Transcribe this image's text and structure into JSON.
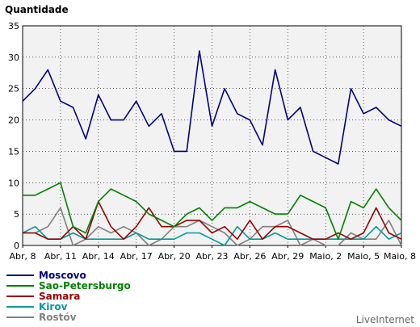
{
  "chart_data": {
    "type": "line",
    "ylabel": "Quantidade",
    "ylim": [
      0,
      35
    ],
    "yticks": [
      0,
      5,
      10,
      15,
      20,
      25,
      30,
      35
    ],
    "x_tick_labels": [
      "Abr, 8",
      "Abr, 11",
      "Abr, 14",
      "Abr, 17",
      "Abr, 20",
      "Abr, 23",
      "Abr, 26",
      "Abr, 29",
      "Maio, 2",
      "Maio, 5",
      "Maio, 8"
    ],
    "x": [
      "Abr, 8",
      "Abr, 9",
      "Abr, 10",
      "Abr, 11",
      "Abr, 12",
      "Abr, 13",
      "Abr, 14",
      "Abr, 15",
      "Abr, 16",
      "Abr, 17",
      "Abr, 18",
      "Abr, 19",
      "Abr, 20",
      "Abr, 21",
      "Abr, 22",
      "Abr, 23",
      "Abr, 24",
      "Abr, 25",
      "Abr, 26",
      "Abr, 27",
      "Abr, 28",
      "Abr, 29",
      "Abr, 30",
      "Maio, 1",
      "Maio, 2",
      "Maio, 3",
      "Maio, 4",
      "Maio, 5",
      "Maio, 6",
      "Maio, 7",
      "Maio, 8"
    ],
    "grid": true,
    "plot_background": "#f2f2f2",
    "series": [
      {
        "name": "Moscovo",
        "color": "#000080",
        "values": [
          23,
          25,
          28,
          23,
          22,
          17,
          24,
          20,
          20,
          23,
          19,
          21,
          15,
          15,
          31,
          19,
          25,
          21,
          20,
          16,
          28,
          20,
          22,
          15,
          14,
          13,
          25,
          21,
          22,
          20,
          19
        ]
      },
      {
        "name": "Sao-Petersburgo",
        "color": "#008000",
        "values": [
          8,
          8,
          9,
          10,
          3,
          2,
          7,
          9,
          8,
          7,
          5,
          4,
          3,
          5,
          6,
          4,
          6,
          6,
          7,
          6,
          5,
          5,
          8,
          7,
          6,
          1,
          7,
          6,
          9,
          6,
          4
        ]
      },
      {
        "name": "Samara",
        "color": "#990000",
        "values": [
          2,
          2,
          1,
          1,
          3,
          1,
          7,
          3,
          1,
          3,
          6,
          3,
          3,
          4,
          4,
          2,
          3,
          1,
          4,
          1,
          3,
          3,
          2,
          1,
          1,
          2,
          1,
          2,
          6,
          2,
          1
        ]
      },
      {
        "name": "Kirov",
        "color": "#009999",
        "values": [
          2,
          3,
          1,
          1,
          2,
          1,
          1,
          1,
          1,
          2,
          1,
          1,
          1,
          2,
          2,
          1,
          0,
          3,
          1,
          1,
          2,
          1,
          1,
          1,
          1,
          1,
          1,
          1,
          3,
          1,
          2
        ]
      },
      {
        "name": "Rostóv",
        "color": "#808080",
        "values": [
          2,
          2,
          3,
          6,
          0,
          1,
          3,
          2,
          3,
          2,
          0,
          1,
          3,
          3,
          4,
          3,
          2,
          0,
          1,
          3,
          3,
          4,
          0,
          1,
          0,
          0,
          2,
          1,
          1,
          4,
          0
        ]
      }
    ]
  },
  "watermark": "LiveInternet"
}
